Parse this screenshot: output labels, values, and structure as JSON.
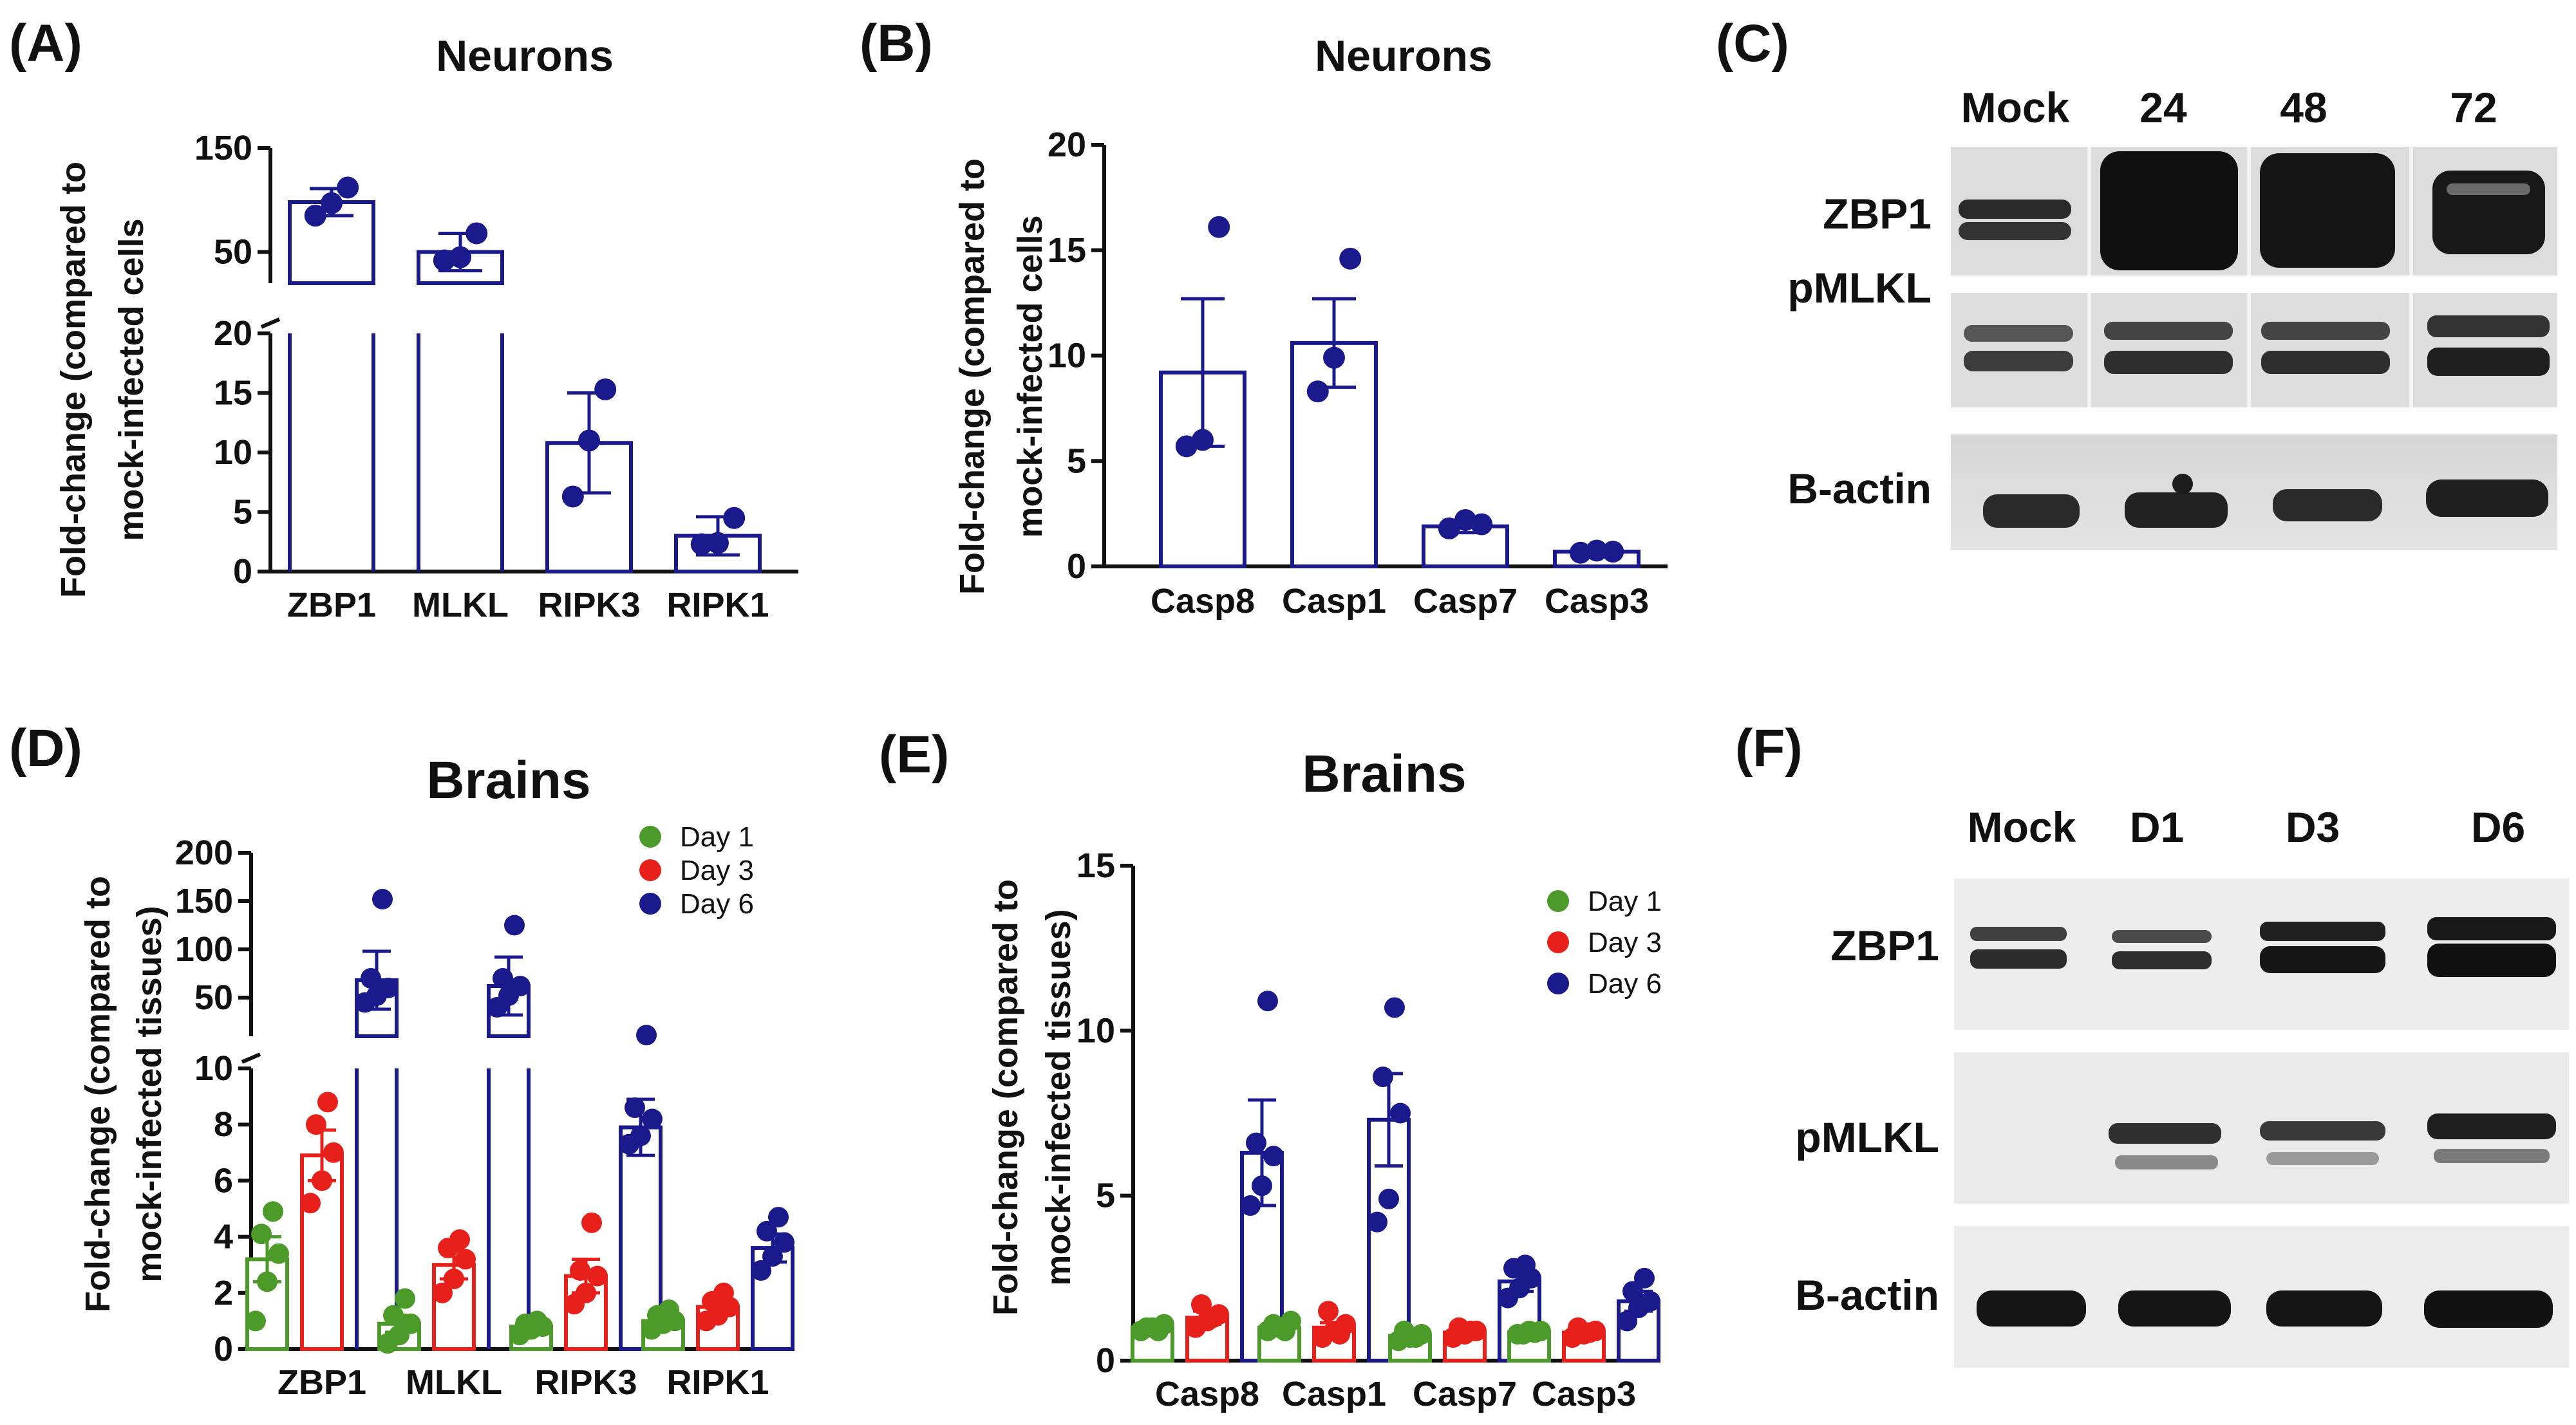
{
  "colors": {
    "navy": "#1a1a8c",
    "green": "#4c9a2a",
    "red": "#e8201c",
    "text": "#111111"
  },
  "chart_data": [
    {
      "panel": "(A)",
      "type": "bar",
      "title": "Neurons",
      "ylabel_line1": "Fold-change (compared to",
      "ylabel_line2": "mock-infected cells",
      "categories": [
        "ZBP1",
        "MLKL",
        "RIPK3",
        "RIPK1"
      ],
      "values": [
        98,
        50,
        10.8,
        3.0
      ],
      "error": [
        13,
        18,
        4.2,
        1.6
      ],
      "points": [
        [
          85,
          97,
          112
        ],
        [
          42,
          45,
          68
        ],
        [
          6.3,
          11,
          15.3
        ],
        [
          2.3,
          2.4,
          4.5
        ]
      ],
      "axis_break": {
        "lower_range": [
          0,
          20
        ],
        "upper_range": [
          20,
          150
        ]
      },
      "ticks_lower": [
        "0",
        "5",
        "10",
        "15",
        "20"
      ],
      "ticks_upper": [
        "50",
        "150"
      ]
    },
    {
      "panel": "(B)",
      "type": "bar",
      "title": "Neurons",
      "ylabel_line1": "Fold-change (compared to",
      "ylabel_line2": "mock-infected cells",
      "categories": [
        "Casp8",
        "Casp1",
        "Casp7",
        "Casp3"
      ],
      "values": [
        9.2,
        10.6,
        1.9,
        0.7
      ],
      "error": [
        3.5,
        2.1,
        0.3,
        0.1
      ],
      "points": [
        [
          5.7,
          6.0,
          16.1
        ],
        [
          8.3,
          9.9,
          14.6
        ],
        [
          1.8,
          2.2,
          2.0
        ],
        [
          0.65,
          0.75,
          0.7
        ]
      ],
      "ylim": [
        0,
        20
      ],
      "ticks": [
        "0",
        "5",
        "10",
        "15",
        "20"
      ]
    },
    {
      "panel": "(D)",
      "type": "bar",
      "title": "Brains",
      "ylabel_line1": "Fold-change (compared to",
      "ylabel_line2": "mock-infected tissues)",
      "categories": [
        "ZBP1",
        "MLKL",
        "RIPK3",
        "RIPK1"
      ],
      "axis_break": {
        "lower_range": [
          0,
          10
        ],
        "upper_range": [
          10,
          200
        ]
      },
      "ticks_lower": [
        "0",
        "2",
        "4",
        "6",
        "8",
        "10"
      ],
      "ticks_upper": [
        "50",
        "100",
        "150",
        "200"
      ],
      "series": [
        {
          "name": "Day 1",
          "color": "green",
          "values": [
            3.2,
            0.9,
            0.8,
            1.0
          ],
          "error": [
            0.8,
            0.3,
            0.1,
            0.2
          ],
          "points": [
            [
              1.0,
              2.4,
              3.4,
              4.1,
              4.9
            ],
            [
              0.2,
              0.5,
              0.9,
              1.2,
              1.8
            ],
            [
              0.5,
              0.7,
              0.8,
              0.9,
              1.0
            ],
            [
              0.7,
              0.9,
              1.0,
              1.2,
              1.4
            ]
          ]
        },
        {
          "name": "Day 3",
          "color": "red",
          "values": [
            6.9,
            3.0,
            2.6,
            1.5
          ],
          "error": [
            0.9,
            0.5,
            0.6,
            0.2
          ],
          "points": [
            [
              5.2,
              6.0,
              7.0,
              8.0,
              8.8
            ],
            [
              2.0,
              2.5,
              3.2,
              3.6,
              3.9
            ],
            [
              1.6,
              2.0,
              2.6,
              2.8,
              4.5
            ],
            [
              1.0,
              1.2,
              1.5,
              1.7,
              2.0
            ]
          ]
        },
        {
          "name": "Day 6",
          "color": "navy",
          "values": [
            68,
            62,
            7.9,
            3.6
          ],
          "error": [
            30,
            30,
            1.0,
            0.5
          ],
          "points": [
            [
              45,
              52,
              60,
              70,
              152
            ],
            [
              40,
              52,
              62,
              70,
              125
            ],
            [
              7.3,
              7.6,
              8.2,
              8.6,
              11.2
            ],
            [
              2.8,
              3.3,
              3.8,
              4.2,
              4.7
            ]
          ]
        }
      ]
    },
    {
      "panel": "(E)",
      "type": "bar",
      "title": "Brains",
      "ylabel_line1": "Fold-change (compared to",
      "ylabel_line2": "mock-infected tissues)",
      "categories": [
        "Casp8",
        "Casp1",
        "Casp7",
        "Casp3"
      ],
      "ylim": [
        0,
        15
      ],
      "ticks": [
        "0",
        "5",
        "10",
        "15"
      ],
      "series": [
        {
          "name": "Day 1",
          "color": "green",
          "values": [
            1.0,
            1.0,
            0.75,
            0.85
          ],
          "error": [
            0.1,
            0.1,
            0.1,
            0.1
          ],
          "points": [
            [
              0.9,
              1.0,
              1.1,
              1.0,
              0.9
            ],
            [
              0.9,
              1.0,
              1.2,
              1.1,
              0.9
            ],
            [
              0.6,
              0.7,
              0.8,
              0.9,
              0.7
            ],
            [
              0.8,
              0.9,
              0.9,
              0.8,
              0.85
            ]
          ]
        },
        {
          "name": "Day 3",
          "color": "red",
          "values": [
            1.3,
            1.0,
            0.85,
            0.85
          ],
          "error": [
            0.2,
            0.15,
            0.1,
            0.1
          ],
          "points": [
            [
              1.0,
              1.2,
              1.4,
              1.7,
              1.3
            ],
            [
              0.7,
              0.9,
              1.1,
              1.5,
              0.8
            ],
            [
              0.7,
              0.8,
              0.9,
              1.0,
              0.9
            ],
            [
              0.7,
              0.8,
              0.9,
              1.0,
              0.85
            ]
          ]
        },
        {
          "name": "Day 6",
          "color": "navy",
          "values": [
            6.3,
            7.3,
            2.4,
            1.8
          ],
          "error": [
            1.6,
            1.4,
            0.3,
            0.3
          ],
          "points": [
            [
              4.7,
              5.3,
              6.2,
              6.6,
              10.9
            ],
            [
              4.2,
              4.9,
              7.5,
              8.6,
              10.7
            ],
            [
              1.9,
              2.2,
              2.5,
              2.8,
              2.9
            ],
            [
              1.2,
              1.6,
              1.8,
              2.1,
              2.5
            ]
          ]
        }
      ]
    }
  ],
  "blots": [
    {
      "panel": "(C)",
      "lanes": [
        "Mock",
        "24",
        "48",
        "72"
      ],
      "rows": [
        "ZBP1",
        "pMLKL",
        "B-actin"
      ]
    },
    {
      "panel": "(F)",
      "lanes": [
        "Mock",
        "D1",
        "D3",
        "D6"
      ],
      "rows": [
        "ZBP1",
        "pMLKL",
        "B-actin"
      ]
    }
  ]
}
